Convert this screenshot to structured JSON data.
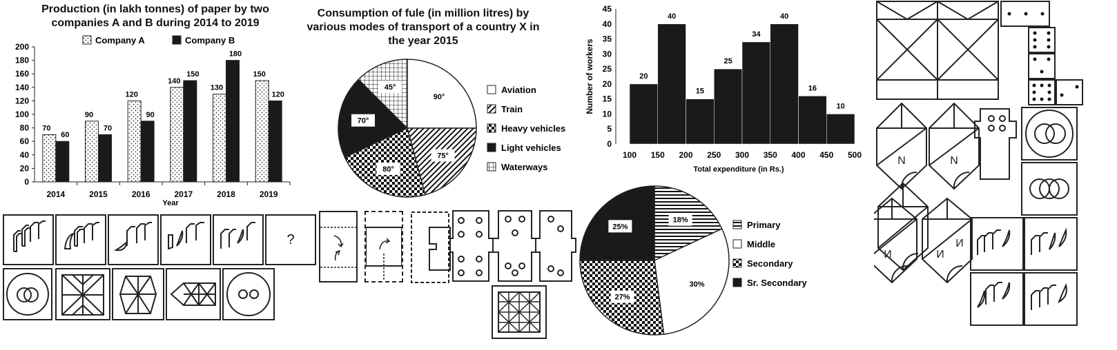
{
  "colors": {
    "dark": "#1a1a1a",
    "light": "#ffffff",
    "line": "#222222"
  },
  "chart_data": [
    {
      "type": "bar",
      "title": "Production (in lakh tonnes) of paper by two companies A and B during 2014 to 2019",
      "xlabel": "Year",
      "ylabel": "",
      "categories": [
        "2014",
        "2015",
        "2016",
        "2017",
        "2018",
        "2019"
      ],
      "series": [
        {
          "name": "Company A",
          "values": [
            70,
            90,
            120,
            140,
            130,
            150
          ],
          "pattern": "dotted"
        },
        {
          "name": "Company B",
          "values": [
            60,
            70,
            90,
            150,
            180,
            120
          ],
          "pattern": "solid-dark"
        }
      ],
      "ylim": [
        0,
        200
      ],
      "yticks": [
        "0",
        "20",
        "40",
        "60",
        "80",
        "100",
        "120",
        "140",
        "160",
        "180",
        "200"
      ],
      "legend": "top",
      "grid": false
    },
    {
      "type": "pie",
      "title": "Consumption of fule (in million litres) by various modes of transport of a country X in the year 2015",
      "slices": [
        {
          "name": "Aviation",
          "value": 90,
          "label": "90°",
          "pattern": "white"
        },
        {
          "name": "Train",
          "value": 75,
          "label": "75°",
          "pattern": "diagonal"
        },
        {
          "name": "Heavy vehicles",
          "value": 80,
          "label": "80°",
          "pattern": "checker"
        },
        {
          "name": "Light vehicles",
          "value": 70,
          "label": "70°",
          "pattern": "solid-dark"
        },
        {
          "name": "Waterways",
          "value": 45,
          "label": "45°",
          "pattern": "grid"
        }
      ],
      "legend": "right"
    },
    {
      "type": "bar",
      "title": "",
      "xlabel": "Total expenditure (in Rs.)",
      "ylabel": "Number of workers",
      "bins": [
        [
          100,
          150
        ],
        [
          150,
          200
        ],
        [
          200,
          250
        ],
        [
          250,
          300
        ],
        [
          300,
          350
        ],
        [
          350,
          400
        ],
        [
          400,
          450
        ],
        [
          450,
          500
        ]
      ],
      "values": [
        20,
        40,
        15,
        25,
        34,
        40,
        16,
        10
      ],
      "xticks": [
        "100",
        "150",
        "200",
        "250",
        "300",
        "350",
        "400",
        "450",
        "500"
      ],
      "yticks": [
        "0",
        "5",
        "10",
        "15",
        "20",
        "25",
        "30",
        "35",
        "40",
        "45"
      ],
      "ylim": [
        0,
        45
      ],
      "xlim": [
        100,
        500
      ],
      "grid": false
    },
    {
      "type": "pie",
      "title": "",
      "slices": [
        {
          "name": "Primary",
          "value": 18,
          "label": "18%",
          "pattern": "hstripe"
        },
        {
          "name": "Middle",
          "value": 30,
          "label": "30%",
          "pattern": "white"
        },
        {
          "name": "Secondary",
          "value": 27,
          "label": "27%",
          "pattern": "checker"
        },
        {
          "name": "Sr. Secondary",
          "value": 25,
          "label": "25%",
          "pattern": "solid-dark"
        }
      ],
      "legend": "right"
    }
  ],
  "puzzle": {
    "question_mark": "?",
    "letters": [
      "N",
      "N",
      "И",
      "И",
      "И"
    ]
  }
}
